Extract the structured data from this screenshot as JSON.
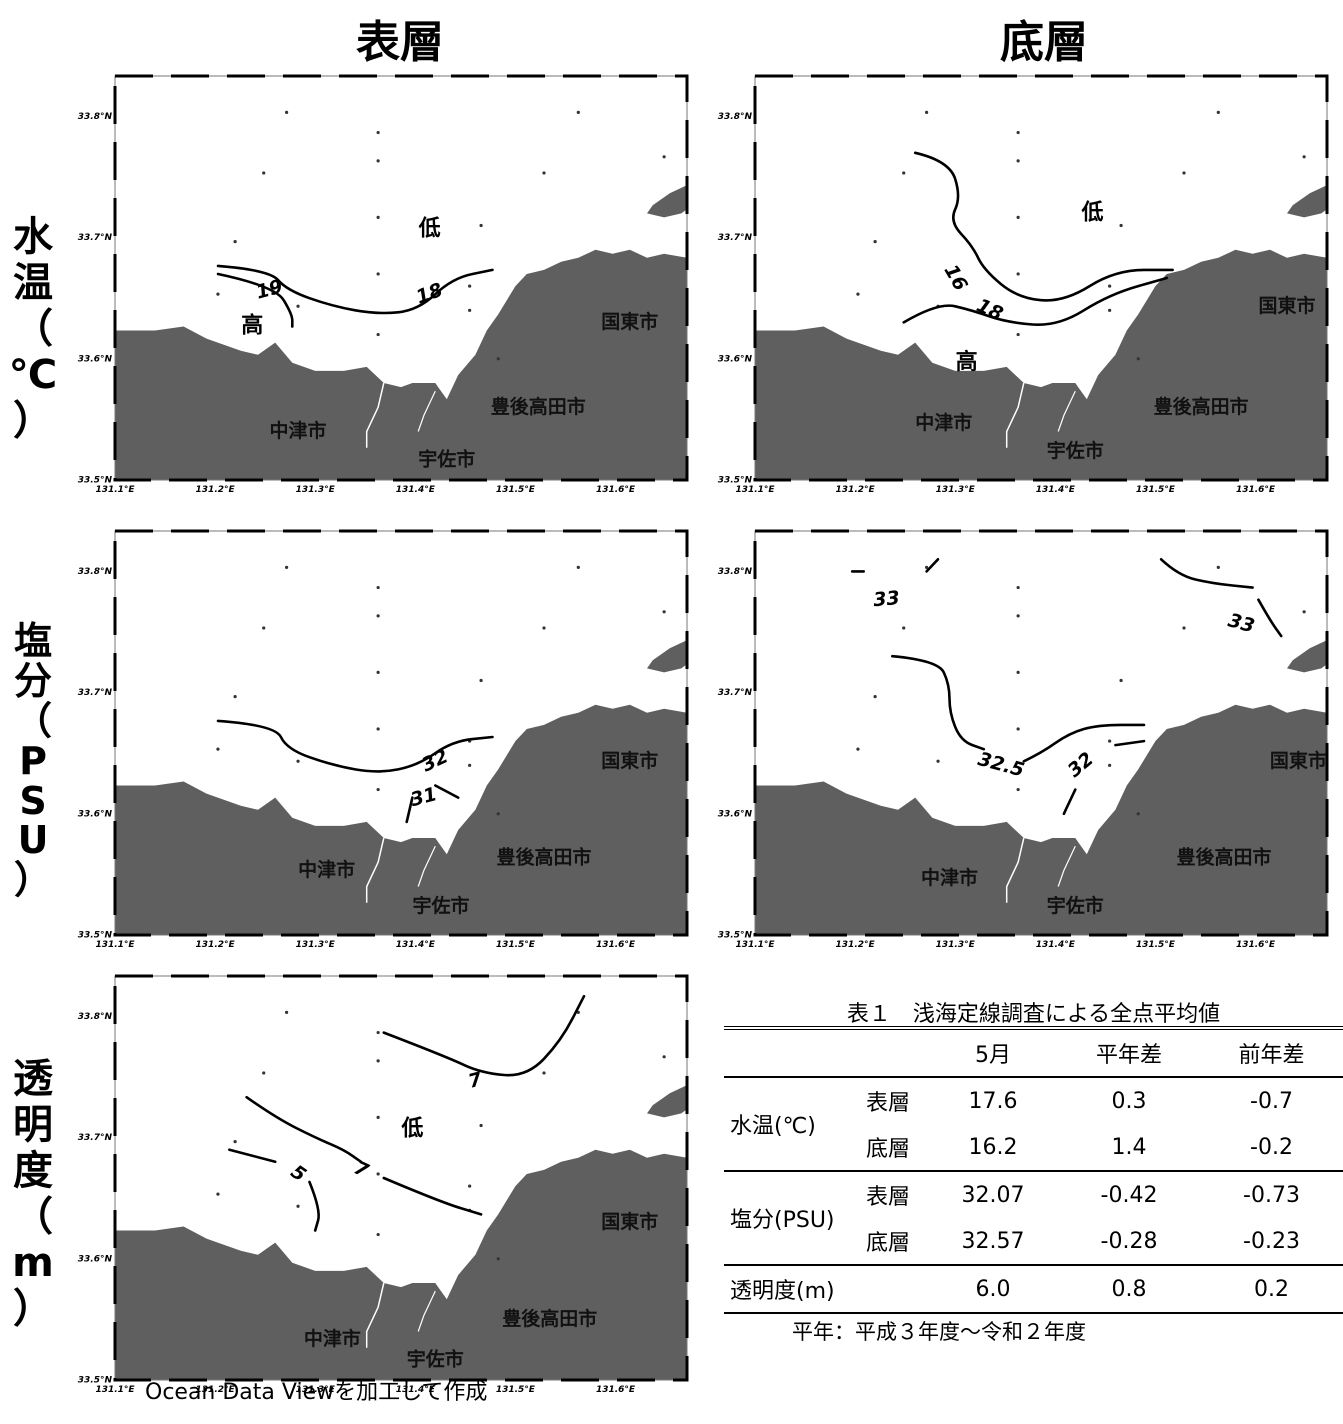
{
  "columns": [
    "表層",
    "底層"
  ],
  "rows": [
    {
      "label": "水\n温\n（\n℃\n）"
    },
    {
      "label": "塩\n分\n（\nP\nS\nU\n）"
    },
    {
      "label": "透\n明\n度\n（\nm\n）"
    }
  ],
  "map_axes": {
    "lat_ticks": [
      "33.8°N",
      "33.7°N",
      "33.6°N",
      "33.5°N"
    ],
    "lon_ticks": [
      "131.1°E",
      "131.2°E",
      "131.3°E",
      "131.4°E",
      "131.5°E",
      "131.6°E"
    ]
  },
  "colors": {
    "land": "#5f5f5f",
    "contour": "#000000",
    "station": "#333333"
  },
  "maps": [
    {
      "id": "temp-surface",
      "places": [
        "中津市",
        "宇佐市",
        "豊後高田市",
        "国東市"
      ],
      "contour_labels": [
        "19",
        "18"
      ],
      "markers": [
        "低",
        "高"
      ]
    },
    {
      "id": "temp-bottom",
      "places": [
        "中津市",
        "宇佐市",
        "豊後高田市",
        "国東市"
      ],
      "contour_labels": [
        "16",
        "18"
      ],
      "markers": [
        "低",
        "高"
      ]
    },
    {
      "id": "sal-surface",
      "places": [
        "中津市",
        "宇佐市",
        "豊後高田市",
        "国東市"
      ],
      "contour_labels": [
        "32",
        "31"
      ],
      "markers": []
    },
    {
      "id": "sal-bottom",
      "places": [
        "中津市",
        "宇佐市",
        "豊後高田市",
        "国東市"
      ],
      "contour_labels": [
        "33",
        "33",
        "32.5",
        "32"
      ],
      "markers": []
    },
    {
      "id": "trans-surface",
      "places": [
        "中津市",
        "宇佐市",
        "豊後高田市",
        "国東市"
      ],
      "contour_labels": [
        "7",
        "7",
        "5"
      ],
      "markers": [
        "低"
      ]
    }
  ],
  "table": {
    "caption": "表１　浅海定線調査による全点平均値",
    "headers": [
      "",
      "",
      "5月",
      "平年差",
      "前年差"
    ],
    "groups": [
      {
        "label": "水温(℃)",
        "rows": [
          {
            "layer": "表層",
            "values": [
              "17.6",
              "0.3",
              "-0.7"
            ]
          },
          {
            "layer": "底層",
            "values": [
              "16.2",
              "1.4",
              "-0.2"
            ]
          }
        ]
      },
      {
        "label": "塩分(PSU)",
        "rows": [
          {
            "layer": "表層",
            "values": [
              "32.07",
              "-0.42",
              "-0.73"
            ]
          },
          {
            "layer": "底層",
            "values": [
              "32.57",
              "-0.28",
              "-0.23"
            ]
          }
        ]
      },
      {
        "label": "透明度(m)",
        "rows": [
          {
            "layer": "",
            "values": [
              "6.0",
              "0.8",
              "0.2"
            ]
          }
        ]
      }
    ],
    "note": "平年：平成３年度～令和２年度"
  },
  "credit": "Ocean Data Viewを加工して作成"
}
